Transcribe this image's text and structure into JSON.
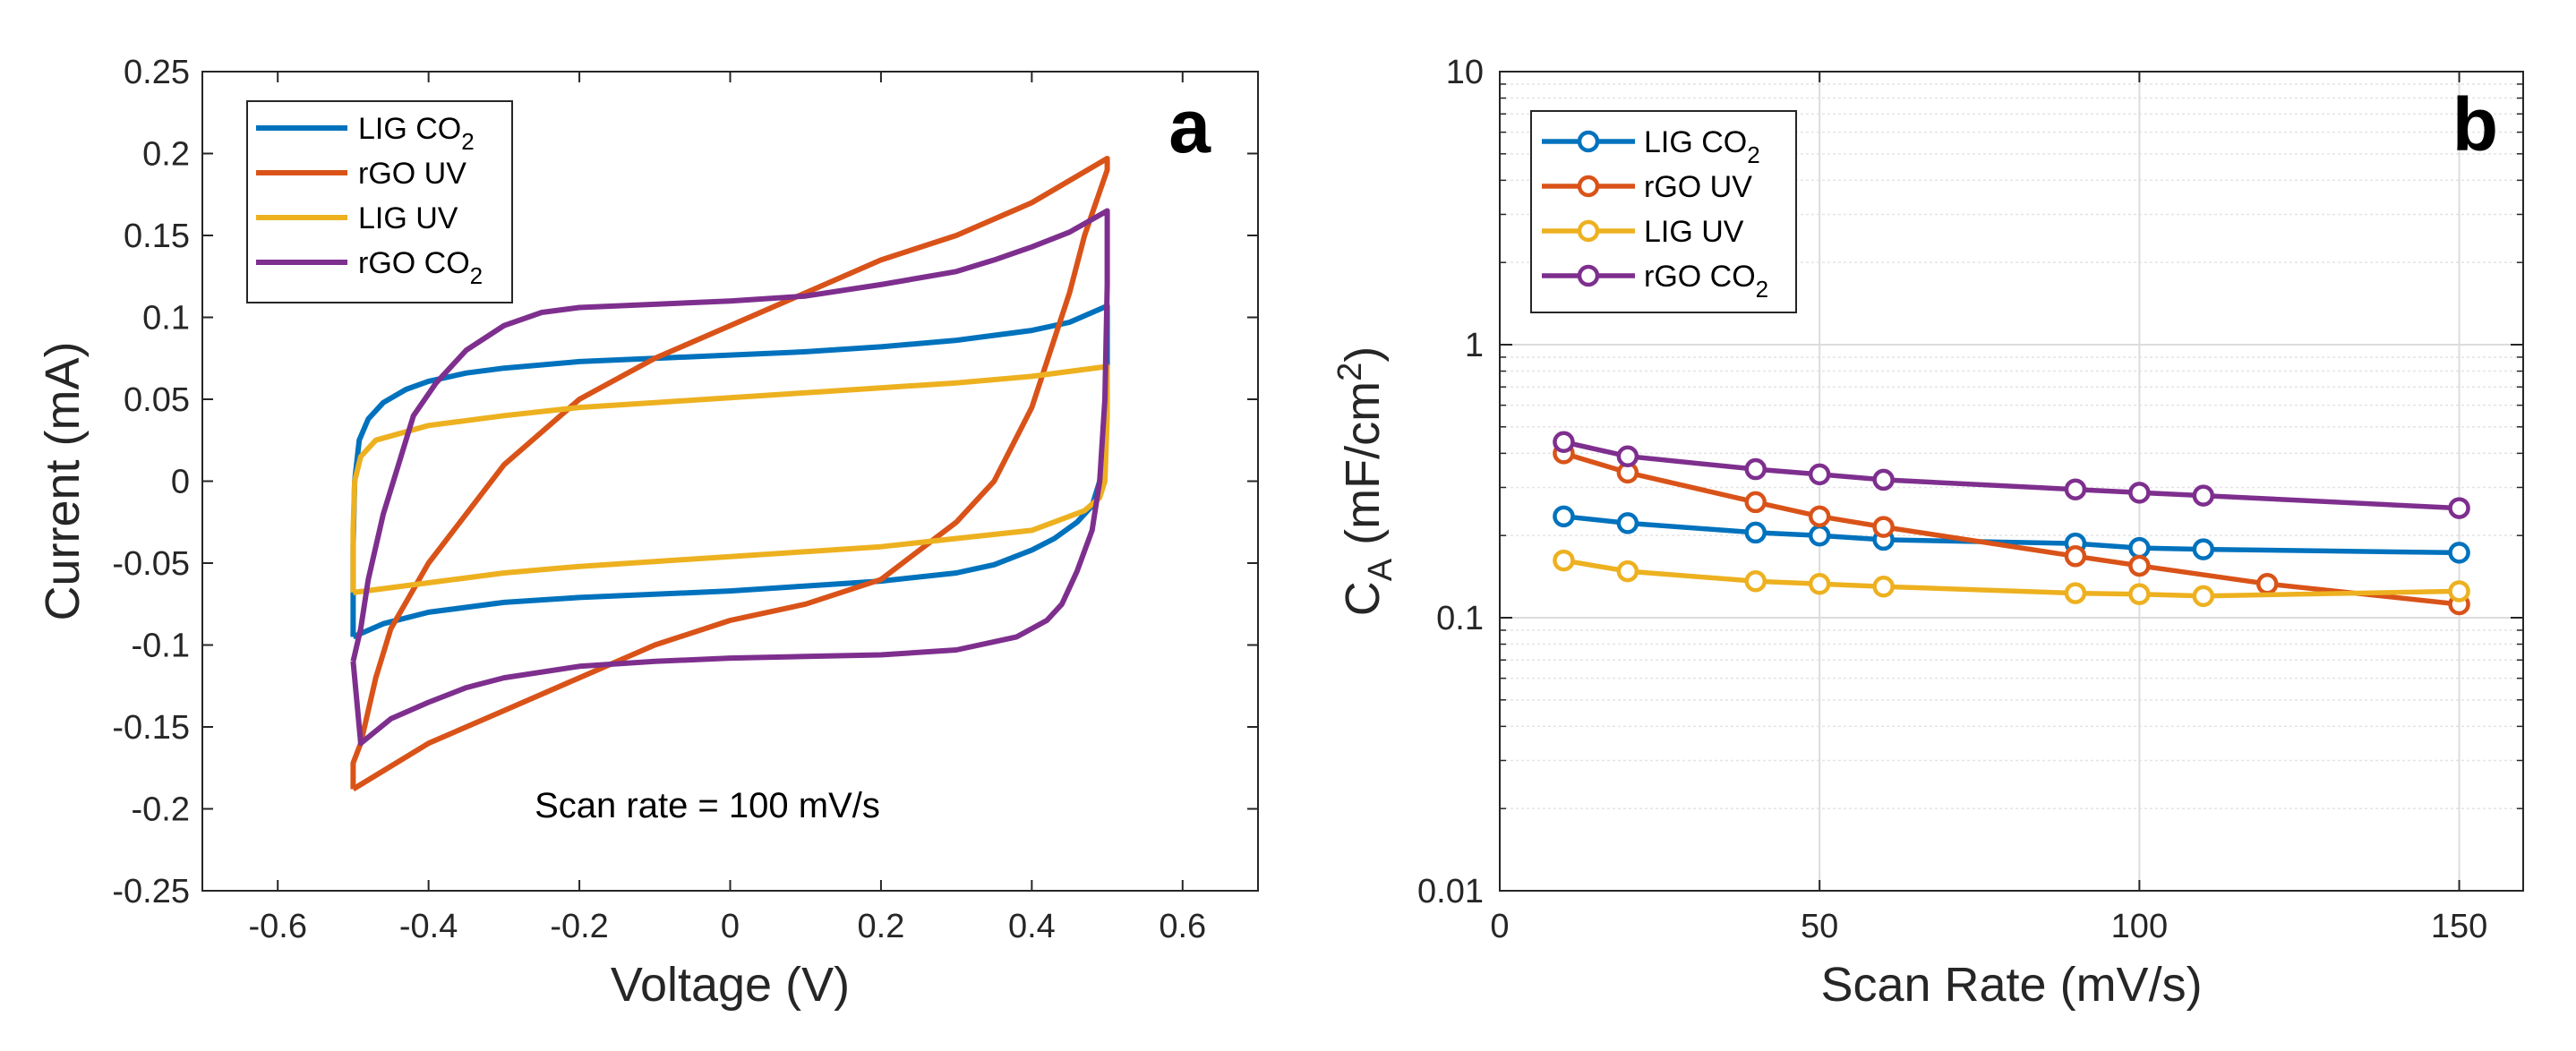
{
  "chart_data": [
    {
      "type": "line",
      "panel_label": "a",
      "xlabel": "Voltage (V)",
      "ylabel": "Current (mA)",
      "xlim": [
        -0.7,
        0.7
      ],
      "ylim": [
        -0.25,
        0.25
      ],
      "xticks": [
        -0.6,
        -0.4,
        -0.2,
        0,
        0.2,
        0.4,
        0.6
      ],
      "xtick_labels": [
        "-0.6",
        "-0.4",
        "-0.2",
        "0",
        "0.2",
        "0.4",
        "0.6"
      ],
      "yticks": [
        -0.25,
        -0.2,
        -0.15,
        -0.1,
        -0.05,
        0,
        0.05,
        0.1,
        0.15,
        0.2,
        0.25
      ],
      "ytick_labels": [
        "-0.25",
        "-0.2",
        "-0.15",
        "-0.1",
        "-0.05",
        "0",
        "0.05",
        "0.1",
        "0.15",
        "0.2",
        "0.25"
      ],
      "annotation": "Scan rate = 100 mV/s",
      "legend_position": "top-left",
      "series": [
        {
          "name": "LIG CO2",
          "legend_main": "LIG CO",
          "legend_sub": "2",
          "color": "#0072BD",
          "points": [
            [
              -0.5,
              -0.095
            ],
            [
              -0.5,
              -0.04
            ],
            [
              -0.498,
              0.0
            ],
            [
              -0.492,
              0.025
            ],
            [
              -0.48,
              0.038
            ],
            [
              -0.46,
              0.048
            ],
            [
              -0.43,
              0.056
            ],
            [
              -0.4,
              0.061
            ],
            [
              -0.35,
              0.066
            ],
            [
              -0.3,
              0.069
            ],
            [
              -0.2,
              0.073
            ],
            [
              -0.1,
              0.075
            ],
            [
              0.0,
              0.077
            ],
            [
              0.1,
              0.079
            ],
            [
              0.2,
              0.082
            ],
            [
              0.3,
              0.086
            ],
            [
              0.4,
              0.092
            ],
            [
              0.45,
              0.097
            ],
            [
              0.5,
              0.107
            ],
            [
              0.5,
              0.07
            ],
            [
              0.497,
              0.03
            ],
            [
              0.49,
              -0.0
            ],
            [
              0.48,
              -0.015
            ],
            [
              0.46,
              -0.025
            ],
            [
              0.43,
              -0.035
            ],
            [
              0.4,
              -0.042
            ],
            [
              0.35,
              -0.051
            ],
            [
              0.3,
              -0.056
            ],
            [
              0.2,
              -0.061
            ],
            [
              0.1,
              -0.064
            ],
            [
              0.0,
              -0.067
            ],
            [
              -0.1,
              -0.069
            ],
            [
              -0.2,
              -0.071
            ],
            [
              -0.3,
              -0.074
            ],
            [
              -0.4,
              -0.08
            ],
            [
              -0.46,
              -0.087
            ],
            [
              -0.5,
              -0.095
            ]
          ]
        },
        {
          "name": "rGO UV",
          "legend_main": "rGO UV",
          "legend_sub": "",
          "color": "#D95319",
          "points": [
            [
              -0.5,
              -0.188
            ],
            [
              -0.5,
              -0.172
            ],
            [
              -0.49,
              -0.16
            ],
            [
              -0.47,
              -0.12
            ],
            [
              -0.45,
              -0.09
            ],
            [
              -0.4,
              -0.05
            ],
            [
              -0.35,
              -0.02
            ],
            [
              -0.3,
              0.01
            ],
            [
              -0.2,
              0.05
            ],
            [
              -0.1,
              0.075
            ],
            [
              0.0,
              0.095
            ],
            [
              0.1,
              0.115
            ],
            [
              0.2,
              0.135
            ],
            [
              0.3,
              0.15
            ],
            [
              0.4,
              0.17
            ],
            [
              0.5,
              0.197
            ],
            [
              0.5,
              0.19
            ],
            [
              0.47,
              0.15
            ],
            [
              0.45,
              0.115
            ],
            [
              0.4,
              0.045
            ],
            [
              0.35,
              0.0
            ],
            [
              0.3,
              -0.025
            ],
            [
              0.2,
              -0.06
            ],
            [
              0.1,
              -0.075
            ],
            [
              0.0,
              -0.085
            ],
            [
              -0.1,
              -0.1
            ],
            [
              -0.2,
              -0.12
            ],
            [
              -0.3,
              -0.14
            ],
            [
              -0.4,
              -0.16
            ],
            [
              -0.5,
              -0.188
            ]
          ]
        },
        {
          "name": "LIG UV",
          "legend_main": "LIG UV",
          "legend_sub": "",
          "color": "#EDB120",
          "points": [
            [
              -0.5,
              -0.068
            ],
            [
              -0.5,
              -0.03
            ],
            [
              -0.498,
              0.0
            ],
            [
              -0.49,
              0.015
            ],
            [
              -0.47,
              0.025
            ],
            [
              -0.4,
              0.034
            ],
            [
              -0.3,
              0.04
            ],
            [
              -0.2,
              0.045
            ],
            [
              -0.1,
              0.048
            ],
            [
              0.0,
              0.051
            ],
            [
              0.1,
              0.054
            ],
            [
              0.2,
              0.057
            ],
            [
              0.3,
              0.06
            ],
            [
              0.4,
              0.064
            ],
            [
              0.5,
              0.07
            ],
            [
              0.5,
              0.04
            ],
            [
              0.497,
              0.0
            ],
            [
              0.49,
              -0.01
            ],
            [
              0.47,
              -0.018
            ],
            [
              0.4,
              -0.03
            ],
            [
              0.3,
              -0.035
            ],
            [
              0.2,
              -0.04
            ],
            [
              0.1,
              -0.043
            ],
            [
              0.0,
              -0.046
            ],
            [
              -0.1,
              -0.049
            ],
            [
              -0.2,
              -0.052
            ],
            [
              -0.3,
              -0.056
            ],
            [
              -0.4,
              -0.062
            ],
            [
              -0.5,
              -0.068
            ]
          ]
        },
        {
          "name": "rGO CO2",
          "legend_main": "rGO CO",
          "legend_sub": "2",
          "color": "#7E2F8E",
          "points": [
            [
              -0.5,
              -0.11
            ],
            [
              -0.49,
              -0.09
            ],
            [
              -0.48,
              -0.06
            ],
            [
              -0.46,
              -0.02
            ],
            [
              -0.44,
              0.01
            ],
            [
              -0.42,
              0.04
            ],
            [
              -0.39,
              0.06
            ],
            [
              -0.35,
              0.08
            ],
            [
              -0.3,
              0.095
            ],
            [
              -0.25,
              0.103
            ],
            [
              -0.2,
              0.106
            ],
            [
              -0.1,
              0.108
            ],
            [
              0.0,
              0.11
            ],
            [
              0.1,
              0.113
            ],
            [
              0.2,
              0.12
            ],
            [
              0.3,
              0.128
            ],
            [
              0.35,
              0.135
            ],
            [
              0.4,
              0.143
            ],
            [
              0.45,
              0.152
            ],
            [
              0.5,
              0.165
            ],
            [
              0.5,
              0.12
            ],
            [
              0.497,
              0.05
            ],
            [
              0.49,
              0.0
            ],
            [
              0.48,
              -0.03
            ],
            [
              0.46,
              -0.055
            ],
            [
              0.44,
              -0.075
            ],
            [
              0.42,
              -0.085
            ],
            [
              0.38,
              -0.095
            ],
            [
              0.3,
              -0.103
            ],
            [
              0.2,
              -0.106
            ],
            [
              0.1,
              -0.107
            ],
            [
              0.0,
              -0.108
            ],
            [
              -0.1,
              -0.11
            ],
            [
              -0.2,
              -0.113
            ],
            [
              -0.3,
              -0.12
            ],
            [
              -0.35,
              -0.126
            ],
            [
              -0.4,
              -0.135
            ],
            [
              -0.45,
              -0.145
            ],
            [
              -0.49,
              -0.16
            ],
            [
              -0.5,
              -0.11
            ]
          ]
        }
      ]
    },
    {
      "type": "line",
      "panel_label": "b",
      "xlabel": "Scan Rate (mV/s)",
      "ylabel_main": "C",
      "ylabel_sub": "A",
      "ylabel_rest": " (mF/cm",
      "ylabel_sup": "2",
      "ylabel_end": ")",
      "yscale": "log",
      "xlim": [
        0,
        160
      ],
      "ylim": [
        0.01,
        10
      ],
      "xticks": [
        0,
        50,
        100,
        150
      ],
      "xtick_labels": [
        "0",
        "50",
        "100",
        "150"
      ],
      "yticks": [
        0.01,
        0.1,
        1,
        10
      ],
      "ytick_labels": [
        "0.01",
        "0.1",
        "1",
        "10"
      ],
      "grid": true,
      "legend_position": "top-left",
      "series": [
        {
          "name": "LIG CO2",
          "legend_main": "LIG CO",
          "legend_sub": "2",
          "color": "#0072BD",
          "x": [
            10,
            20,
            40,
            50,
            60,
            90,
            100,
            110,
            150
          ],
          "y": [
            0.235,
            0.222,
            0.205,
            0.2,
            0.193,
            0.187,
            0.18,
            0.178,
            0.173
          ]
        },
        {
          "name": "rGO UV",
          "legend_main": "rGO UV",
          "legend_sub": "",
          "color": "#D95319",
          "x": [
            10,
            20,
            40,
            50,
            60,
            90,
            100,
            120,
            150
          ],
          "y": [
            0.4,
            0.34,
            0.265,
            0.235,
            0.215,
            0.168,
            0.155,
            0.133,
            0.112
          ]
        },
        {
          "name": "LIG UV",
          "legend_main": "LIG UV",
          "legend_sub": "",
          "color": "#EDB120",
          "x": [
            10,
            20,
            40,
            50,
            60,
            90,
            100,
            110,
            150
          ],
          "y": [
            0.162,
            0.148,
            0.136,
            0.133,
            0.13,
            0.123,
            0.122,
            0.12,
            0.125
          ]
        },
        {
          "name": "rGO CO2",
          "legend_main": "rGO CO",
          "legend_sub": "2",
          "color": "#7E2F8E",
          "x": [
            10,
            20,
            40,
            50,
            60,
            90,
            100,
            110,
            150
          ],
          "y": [
            0.44,
            0.39,
            0.35,
            0.335,
            0.32,
            0.295,
            0.287,
            0.28,
            0.252
          ]
        }
      ]
    }
  ]
}
